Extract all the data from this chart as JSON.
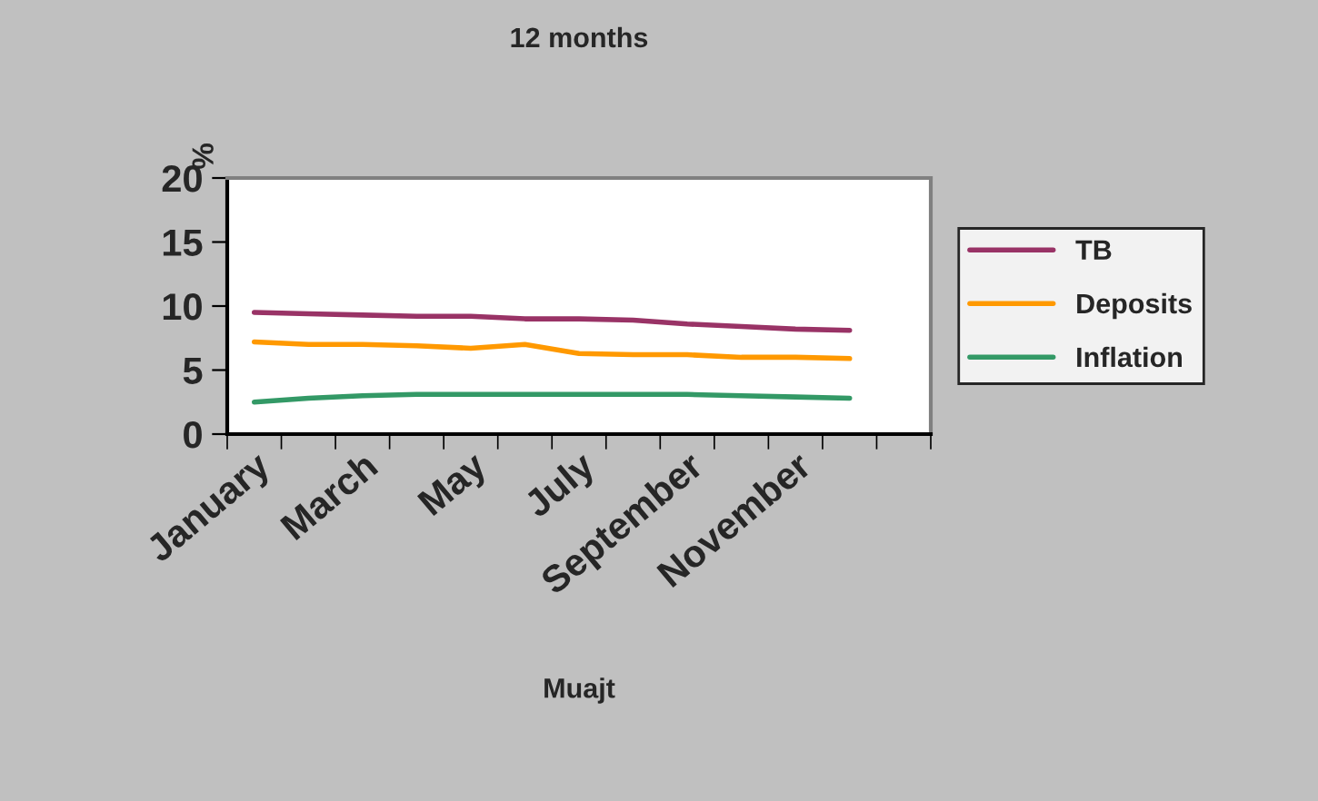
{
  "chart_data": {
    "type": "line",
    "title": "12 months",
    "xlabel": "Muajt",
    "ylabel": "%",
    "categories": [
      "January",
      null,
      "March",
      null,
      "May",
      null,
      "July",
      null,
      "September",
      null,
      "November",
      null,
      null
    ],
    "series": [
      {
        "name": "TB",
        "color": "#993366",
        "values": [
          9.5,
          9.4,
          9.3,
          9.2,
          9.2,
          9.0,
          9.0,
          8.9,
          8.6,
          8.4,
          8.2,
          8.1,
          null
        ]
      },
      {
        "name": "Deposits",
        "color": "#ff9900",
        "values": [
          7.2,
          7.0,
          7.0,
          6.9,
          6.7,
          7.0,
          6.3,
          6.2,
          6.2,
          6.0,
          6.0,
          5.9,
          null
        ]
      },
      {
        "name": "Inflation",
        "color": "#339966",
        "values": [
          2.5,
          2.8,
          3.0,
          3.1,
          3.1,
          3.1,
          3.1,
          3.1,
          3.1,
          3.0,
          2.9,
          2.8,
          null
        ]
      }
    ],
    "ylim": [
      0,
      20
    ],
    "yticks": [
      0,
      5,
      10,
      15,
      20
    ],
    "grid": false,
    "legend": "right",
    "marker": "none",
    "line_style": "solid"
  }
}
